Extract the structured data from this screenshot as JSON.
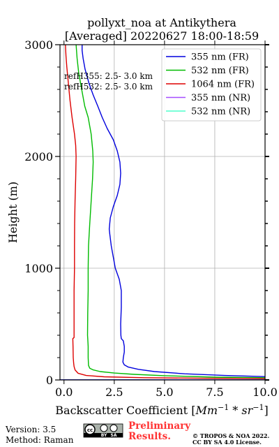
{
  "chart_data": {
    "type": "line",
    "title_line1": "pollyxt_noa at Antikythera",
    "title_line2": "[Averaged] 20220627 18:00-18:59",
    "xlabel_prefix": "Backscatter Coefficient [",
    "xlabel_unit": "Mm",
    "xlabel_exp1": "−1",
    "xlabel_mid": " * ",
    "xlabel_unit2": "sr",
    "xlabel_exp2": "−1",
    "xlabel_suffix": "]",
    "ylabel": "Height (m)",
    "xlim": [
      -0.2,
      10
    ],
    "ylim": [
      0,
      3000
    ],
    "x_ticks": [
      0.0,
      2.5,
      5.0,
      7.5,
      10.0
    ],
    "x_tick_labels": [
      "0.0",
      "2.5",
      "5.0",
      "7.5",
      "10.0"
    ],
    "y_ticks": [
      0,
      1000,
      2000,
      3000
    ],
    "y_tick_labels": [
      "0",
      "1000",
      "2000",
      "3000"
    ],
    "grid": true,
    "legend_position": "top-right",
    "ref_text": [
      "refH355:  2.5- 3.0 km",
      "refH532:  2.5- 3.0 km"
    ],
    "series": [
      {
        "name": "355 nm (FR)",
        "color": "#0000dd",
        "points": [
          [
            10.0,
            30
          ],
          [
            8.0,
            40
          ],
          [
            6.0,
            55
          ],
          [
            4.5,
            75
          ],
          [
            3.7,
            95
          ],
          [
            3.2,
            115
          ],
          [
            3.0,
            135
          ],
          [
            2.93,
            160
          ],
          [
            2.95,
            200
          ],
          [
            3.0,
            250
          ],
          [
            3.0,
            300
          ],
          [
            2.95,
            350
          ],
          [
            2.85,
            370
          ],
          [
            2.83,
            400
          ],
          [
            2.82,
            500
          ],
          [
            2.85,
            650
          ],
          [
            2.85,
            800
          ],
          [
            2.75,
            900
          ],
          [
            2.55,
            1000
          ],
          [
            2.45,
            1100
          ],
          [
            2.35,
            1200
          ],
          [
            2.28,
            1300
          ],
          [
            2.25,
            1350
          ],
          [
            2.3,
            1450
          ],
          [
            2.45,
            1550
          ],
          [
            2.65,
            1650
          ],
          [
            2.78,
            1750
          ],
          [
            2.82,
            1850
          ],
          [
            2.78,
            1950
          ],
          [
            2.65,
            2050
          ],
          [
            2.45,
            2150
          ],
          [
            2.15,
            2250
          ],
          [
            1.9,
            2350
          ],
          [
            1.68,
            2450
          ],
          [
            1.45,
            2550
          ],
          [
            1.25,
            2650
          ],
          [
            1.05,
            2780
          ],
          [
            0.95,
            2880
          ],
          [
            0.9,
            2950
          ],
          [
            0.9,
            3000
          ]
        ]
      },
      {
        "name": "532 nm (FR)",
        "color": "#00bb00",
        "points": [
          [
            10.0,
            20
          ],
          [
            7.5,
            25
          ],
          [
            5.0,
            38
          ],
          [
            3.5,
            50
          ],
          [
            2.5,
            62
          ],
          [
            1.8,
            75
          ],
          [
            1.45,
            90
          ],
          [
            1.28,
            105
          ],
          [
            1.22,
            130
          ],
          [
            1.2,
            200
          ],
          [
            1.2,
            300
          ],
          [
            1.18,
            370
          ],
          [
            1.17,
            400
          ],
          [
            1.18,
            600
          ],
          [
            1.2,
            800
          ],
          [
            1.2,
            1000
          ],
          [
            1.22,
            1200
          ],
          [
            1.28,
            1400
          ],
          [
            1.35,
            1600
          ],
          [
            1.42,
            1800
          ],
          [
            1.45,
            1950
          ],
          [
            1.43,
            2050
          ],
          [
            1.35,
            2200
          ],
          [
            1.2,
            2350
          ],
          [
            1.03,
            2450
          ],
          [
            0.88,
            2600
          ],
          [
            0.73,
            2750
          ],
          [
            0.65,
            2880
          ],
          [
            0.6,
            3000
          ]
        ]
      },
      {
        "name": "1064 nm (FR)",
        "color": "#dd0000",
        "points": [
          [
            10.0,
            12
          ],
          [
            7.0,
            15
          ],
          [
            4.0,
            20
          ],
          [
            2.0,
            28
          ],
          [
            1.1,
            40
          ],
          [
            0.7,
            60
          ],
          [
            0.55,
            90
          ],
          [
            0.5,
            120
          ],
          [
            0.48,
            150
          ],
          [
            0.46,
            200
          ],
          [
            0.45,
            300
          ],
          [
            0.44,
            370
          ],
          [
            0.5,
            380
          ],
          [
            0.5,
            400
          ],
          [
            0.5,
            600
          ],
          [
            0.5,
            800
          ],
          [
            0.52,
            1000
          ],
          [
            0.52,
            1200
          ],
          [
            0.53,
            1400
          ],
          [
            0.55,
            1600
          ],
          [
            0.58,
            1800
          ],
          [
            0.6,
            2000
          ],
          [
            0.58,
            2100
          ],
          [
            0.52,
            2200
          ],
          [
            0.4,
            2350
          ],
          [
            0.3,
            2500
          ],
          [
            0.22,
            2650
          ],
          [
            0.14,
            2800
          ],
          [
            0.1,
            2900
          ],
          [
            0.07,
            3000
          ]
        ]
      },
      {
        "name": "355 nm (NR)",
        "color": "#a64dff",
        "points": []
      },
      {
        "name": "532 nm (NR)",
        "color": "#4dffcc",
        "points": []
      }
    ]
  },
  "footer": {
    "version": "Version: 3.5",
    "method": "Method: Raman",
    "badge_letters": "cc",
    "badge_by": "BY",
    "badge_sa": "SA",
    "prelim_line1": "Preliminary",
    "prelim_line2": "Results.",
    "copyright_line1": "© TROPOS & NOA 2022.",
    "copyright_line2": "CC BY SA 4.0 License."
  }
}
